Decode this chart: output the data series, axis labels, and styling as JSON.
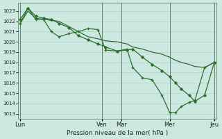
{
  "title": "Pression niveau de la mer( hPa )",
  "bg_color": "#cce8e0",
  "grid_color": "#aacccc",
  "line_color": "#2d6e2d",
  "marker_color": "#2d6e2d",
  "yticks": [
    1013,
    1014,
    1015,
    1016,
    1017,
    1018,
    1019,
    1020,
    1021,
    1022,
    1023
  ],
  "ymin": 1012.5,
  "ymax": 1023.8,
  "xtick_labels": [
    "Lun",
    "Ven",
    "Mar",
    "Mer",
    "Jeu"
  ],
  "xtick_positions": [
    0.0,
    0.42,
    0.52,
    0.77,
    1.0
  ],
  "vline_positions": [
    0.0,
    0.42,
    0.52,
    0.77,
    1.0
  ],
  "series_A_x": [
    0.0,
    0.04,
    0.08,
    0.12,
    0.16,
    0.2,
    0.25,
    0.3,
    0.35,
    0.4,
    0.44,
    0.5,
    0.55,
    0.58,
    0.63,
    0.68,
    0.73,
    0.77,
    0.8,
    0.83,
    0.87,
    0.9,
    0.95,
    1.0
  ],
  "series_A_y": [
    1021.8,
    1023.3,
    1022.2,
    1022.2,
    1021.0,
    1020.5,
    1020.8,
    1021.0,
    1021.3,
    1021.2,
    1019.2,
    1019.1,
    1019.3,
    1017.5,
    1016.5,
    1016.3,
    1014.8,
    1013.1,
    1013.1,
    1013.7,
    1014.1,
    1014.3,
    1017.5,
    1018.0
  ],
  "series_B_x": [
    0.0,
    0.04,
    0.08,
    0.12,
    0.16,
    0.2,
    0.25,
    0.3,
    0.35,
    0.4,
    0.44,
    0.5,
    0.55,
    0.58,
    0.63,
    0.68,
    0.73,
    0.77,
    0.8,
    0.83,
    0.87,
    0.9,
    0.95,
    1.0
  ],
  "series_B_y": [
    1022.2,
    1023.3,
    1022.5,
    1022.3,
    1022.2,
    1021.8,
    1021.4,
    1020.6,
    1020.2,
    1019.8,
    1019.5,
    1019.1,
    1019.2,
    1019.3,
    1018.5,
    1017.8,
    1017.2,
    1016.6,
    1016.0,
    1015.4,
    1014.8,
    1014.2,
    1014.8,
    1018.0
  ],
  "series_C_x": [
    0.0,
    0.04,
    0.08,
    0.12,
    0.16,
    0.2,
    0.25,
    0.3,
    0.35,
    0.4,
    0.44,
    0.5,
    0.55,
    0.58,
    0.63,
    0.68,
    0.73,
    0.77,
    0.8,
    0.83,
    0.87,
    0.9,
    0.95,
    1.0
  ],
  "series_C_y": [
    1021.8,
    1023.0,
    1022.3,
    1022.2,
    1022.1,
    1022.0,
    1021.5,
    1021.0,
    1020.5,
    1020.3,
    1020.1,
    1020.0,
    1019.8,
    1019.5,
    1019.3,
    1019.0,
    1018.8,
    1018.5,
    1018.2,
    1018.0,
    1017.8,
    1017.6,
    1017.5,
    1018.0
  ]
}
